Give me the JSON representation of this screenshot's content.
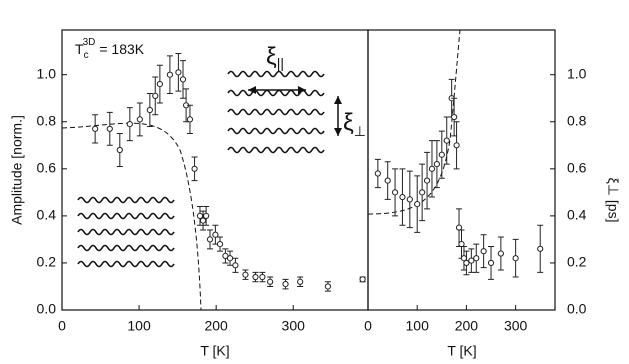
{
  "chart_data": [
    {
      "type": "scatter",
      "xlabel": "T [K]",
      "ylabel": "Amplitude [norm.]",
      "annotations": [
        "T",
        "c",
        "3D",
        "= 183K",
        "ξ",
        "||",
        "ξ",
        "⊥"
      ],
      "xlim": [
        0,
        397
      ],
      "ylim": [
        0,
        1.19
      ],
      "xticks": [
        0,
        100,
        200,
        300
      ],
      "yticks": [
        {
          "value": 0,
          "label": "0.0"
        },
        {
          "value": 0.2,
          "label": "0.2"
        },
        {
          "value": 0.4,
          "label": "0.4"
        },
        {
          "value": 0.6,
          "label": "0.6"
        },
        {
          "value": 0.8,
          "label": "0.8"
        },
        {
          "value": 1,
          "label": "1.0"
        }
      ],
      "series": [
        {
          "color": "#222222",
          "x": [
            43,
            62,
            75,
            88,
            101,
            114,
            121,
            127,
            140,
            151,
            157,
            161,
            166,
            172,
            179,
            183,
            187,
            192,
            199,
            205,
            212,
            218,
            225,
            238,
            251,
            260,
            270,
            290,
            309,
            345,
            390
          ],
          "values": [
            0.77,
            0.77,
            0.68,
            0.79,
            0.81,
            0.85,
            0.91,
            0.96,
            1.0,
            1.01,
            0.98,
            0.87,
            0.81,
            0.6,
            0.4,
            0.38,
            0.4,
            0.3,
            0.32,
            0.28,
            0.23,
            0.22,
            0.19,
            0.15,
            0.14,
            0.14,
            0.12,
            0.11,
            0.12,
            0.1,
            0.13
          ],
          "errors": [
            0.06,
            0.07,
            0.07,
            0.07,
            0.07,
            0.07,
            0.08,
            0.08,
            0.08,
            0.08,
            0.08,
            0.07,
            0.06,
            0.05,
            0.04,
            0.04,
            0.04,
            0.04,
            0.04,
            0.03,
            0.03,
            0.03,
            0.03,
            0.02,
            0.02,
            0.02,
            0.02,
            0.02,
            0.02,
            0.02,
            0.01
          ]
        }
      ]
    },
    {
      "type": "scatter",
      "xlabel": "T [K]",
      "y2label": "ξ⊥ [ps]",
      "xlim": [
        0,
        380
      ],
      "y2lim": [
        0,
        1.19
      ],
      "xticks": [
        0,
        100,
        200,
        300
      ],
      "y2ticks": [
        {
          "value": 0,
          "label": "0.0"
        },
        {
          "value": 0.2,
          "label": "0.2"
        },
        {
          "value": 0.4,
          "label": "0.4"
        },
        {
          "value": 0.6,
          "label": "0.6"
        },
        {
          "value": 0.8,
          "label": "0.8"
        },
        {
          "value": 1,
          "label": "1.0"
        }
      ],
      "series": [
        {
          "axis": "y2",
          "color": "#222222",
          "x": [
            20,
            40,
            55,
            70,
            85,
            100,
            110,
            120,
            130,
            140,
            150,
            160,
            170,
            175,
            180,
            185,
            190,
            195,
            200,
            210,
            220,
            235,
            250,
            270,
            300,
            350
          ],
          "values": [
            0.58,
            0.55,
            0.5,
            0.48,
            0.47,
            0.45,
            0.5,
            0.55,
            0.6,
            0.62,
            0.66,
            0.72,
            0.9,
            0.82,
            0.7,
            0.35,
            0.28,
            0.22,
            0.2,
            0.21,
            0.22,
            0.25,
            0.2,
            0.24,
            0.22,
            0.26
          ],
          "errors": [
            0.06,
            0.08,
            0.1,
            0.12,
            0.12,
            0.12,
            0.12,
            0.12,
            0.12,
            0.1,
            0.1,
            0.1,
            0.08,
            0.08,
            0.1,
            0.08,
            0.06,
            0.05,
            0.05,
            0.05,
            0.06,
            0.07,
            0.07,
            0.07,
            0.08,
            0.1
          ]
        }
      ]
    }
  ]
}
